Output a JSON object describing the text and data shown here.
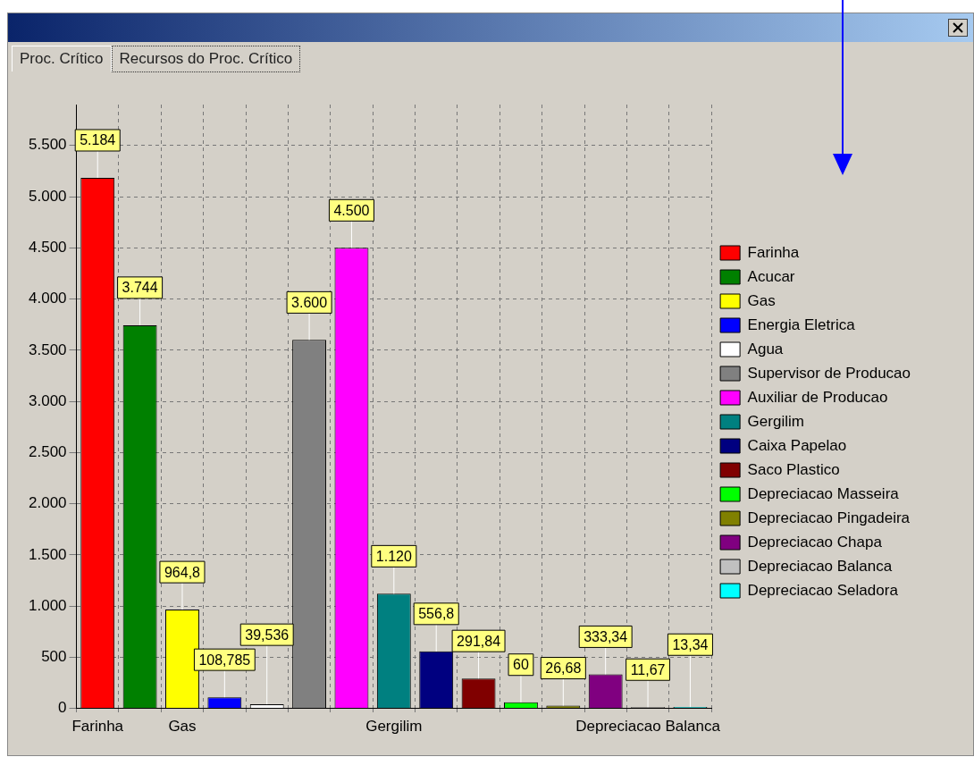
{
  "chart_data": {
    "type": "bar",
    "categories": [
      "Farinha",
      null,
      "Gas",
      null,
      null,
      null,
      null,
      "Gergilim",
      null,
      null,
      null,
      null,
      null,
      "Depreciacao Balanca",
      null
    ],
    "series": [
      {
        "name": "Farinha",
        "color": "#ff0000",
        "values": [
          5184,
          null,
          null,
          null,
          null,
          null,
          null,
          null,
          null,
          null,
          null,
          null,
          null,
          null,
          null
        ],
        "value_labels": [
          "5.184",
          null,
          null,
          null,
          null,
          null,
          null,
          null,
          null,
          null,
          null,
          null,
          null,
          null,
          null
        ]
      },
      {
        "name": "Acucar",
        "color": "#008000",
        "values": [
          null,
          3744,
          null,
          null,
          null,
          null,
          null,
          null,
          null,
          null,
          null,
          null,
          null,
          null,
          null
        ],
        "value_labels": [
          null,
          "3.744",
          null,
          null,
          null,
          null,
          null,
          null,
          null,
          null,
          null,
          null,
          null,
          null,
          null
        ]
      },
      {
        "name": "Gas",
        "color": "#ffff00",
        "values": [
          null,
          null,
          964.8,
          null,
          null,
          null,
          null,
          null,
          null,
          null,
          null,
          null,
          null,
          null,
          null
        ],
        "value_labels": [
          null,
          null,
          "964,8",
          null,
          null,
          null,
          null,
          null,
          null,
          null,
          null,
          null,
          null,
          null,
          null
        ]
      },
      {
        "name": "Energia Eletrica",
        "color": "#0000ff",
        "values": [
          null,
          null,
          null,
          108.785,
          null,
          null,
          null,
          null,
          null,
          null,
          null,
          null,
          null,
          null,
          null
        ],
        "value_labels": [
          null,
          null,
          null,
          "108,785",
          null,
          null,
          null,
          null,
          null,
          null,
          null,
          null,
          null,
          null,
          null
        ]
      },
      {
        "name": "Agua",
        "color": "#ffffff",
        "values": [
          null,
          null,
          null,
          null,
          39.536,
          null,
          null,
          null,
          null,
          null,
          null,
          null,
          null,
          null,
          null
        ],
        "value_labels": [
          null,
          null,
          null,
          null,
          "39,536",
          null,
          null,
          null,
          null,
          null,
          null,
          null,
          null,
          null,
          null
        ]
      },
      {
        "name": "Supervisor de Producao",
        "color": "#808080",
        "values": [
          null,
          null,
          null,
          null,
          null,
          3600,
          null,
          null,
          null,
          null,
          null,
          null,
          null,
          null,
          null
        ],
        "value_labels": [
          null,
          null,
          null,
          null,
          null,
          "3.600",
          null,
          null,
          null,
          null,
          null,
          null,
          null,
          null,
          null
        ]
      },
      {
        "name": "Auxiliar de Producao",
        "color": "#ff00ff",
        "values": [
          null,
          null,
          null,
          null,
          null,
          null,
          4500,
          null,
          null,
          null,
          null,
          null,
          null,
          null,
          null
        ],
        "value_labels": [
          null,
          null,
          null,
          null,
          null,
          null,
          "4.500",
          null,
          null,
          null,
          null,
          null,
          null,
          null,
          null
        ]
      },
      {
        "name": "Gergilim",
        "color": "#008080",
        "values": [
          null,
          null,
          null,
          null,
          null,
          null,
          null,
          1120,
          null,
          null,
          null,
          null,
          null,
          null,
          null
        ],
        "value_labels": [
          null,
          null,
          null,
          null,
          null,
          null,
          null,
          "1.120",
          null,
          null,
          null,
          null,
          null,
          null,
          null
        ]
      },
      {
        "name": "Caixa Papelao",
        "color": "#000080",
        "values": [
          null,
          null,
          null,
          null,
          null,
          null,
          null,
          null,
          556.8,
          null,
          null,
          null,
          null,
          null,
          null
        ],
        "value_labels": [
          null,
          null,
          null,
          null,
          null,
          null,
          null,
          null,
          "556,8",
          null,
          null,
          null,
          null,
          null,
          null
        ]
      },
      {
        "name": "Saco Plastico",
        "color": "#800000",
        "values": [
          null,
          null,
          null,
          null,
          null,
          null,
          null,
          null,
          null,
          291.84,
          null,
          null,
          null,
          null,
          null
        ],
        "value_labels": [
          null,
          null,
          null,
          null,
          null,
          null,
          null,
          null,
          null,
          "291,84",
          null,
          null,
          null,
          null,
          null
        ]
      },
      {
        "name": "Depreciacao Masseira",
        "color": "#00ff00",
        "values": [
          null,
          null,
          null,
          null,
          null,
          null,
          null,
          null,
          null,
          null,
          60,
          null,
          null,
          null,
          null
        ],
        "value_labels": [
          null,
          null,
          null,
          null,
          null,
          null,
          null,
          null,
          null,
          null,
          "60",
          null,
          null,
          null,
          null
        ]
      },
      {
        "name": "Depreciacao Pingadeira",
        "color": "#808000",
        "values": [
          null,
          null,
          null,
          null,
          null,
          null,
          null,
          null,
          null,
          null,
          null,
          26.68,
          null,
          null,
          null
        ],
        "value_labels": [
          null,
          null,
          null,
          null,
          null,
          null,
          null,
          null,
          null,
          null,
          null,
          "26,68",
          null,
          null,
          null
        ]
      },
      {
        "name": "Depreciacao Chapa",
        "color": "#800080",
        "values": [
          null,
          null,
          null,
          null,
          null,
          null,
          null,
          null,
          null,
          null,
          null,
          null,
          333.34,
          null,
          null
        ],
        "value_labels": [
          null,
          null,
          null,
          null,
          null,
          null,
          null,
          null,
          null,
          null,
          null,
          null,
          "333,34",
          null,
          null
        ]
      },
      {
        "name": "Depreciacao Balanca",
        "color": "#c0c0c0",
        "values": [
          null,
          null,
          null,
          null,
          null,
          null,
          null,
          null,
          null,
          null,
          null,
          null,
          null,
          11.67,
          null
        ],
        "value_labels": [
          null,
          null,
          null,
          null,
          null,
          null,
          null,
          null,
          null,
          null,
          null,
          null,
          null,
          "11,67",
          null
        ]
      },
      {
        "name": "Depreciacao Seladora",
        "color": "#00ffff",
        "values": [
          null,
          null,
          null,
          null,
          null,
          null,
          null,
          null,
          null,
          null,
          null,
          null,
          null,
          null,
          13.34
        ],
        "value_labels": [
          null,
          null,
          null,
          null,
          null,
          null,
          null,
          null,
          null,
          null,
          null,
          null,
          null,
          null,
          "13,34"
        ]
      }
    ],
    "ylim": [
      0,
      5900
    ],
    "yticks": [
      0,
      500,
      {
        "value": 1000,
        "label": "1.000"
      },
      {
        "value": 1500,
        "label": "1.500"
      },
      {
        "value": 2000,
        "label": "2.000"
      },
      {
        "value": 2500,
        "label": "2.500"
      },
      {
        "value": 3000,
        "label": "3.000"
      },
      {
        "value": 3500,
        "label": "3.500"
      },
      {
        "value": 4000,
        "label": "4.000"
      },
      {
        "value": 4500,
        "label": "4.500"
      },
      {
        "value": 5000,
        "label": "5.000"
      },
      {
        "value": 5500,
        "label": "5.500"
      }
    ],
    "grid": true,
    "legend": "right",
    "annotations": [
      "Proc. Crítico",
      "Recursos do Proc. Crítico"
    ]
  }
}
